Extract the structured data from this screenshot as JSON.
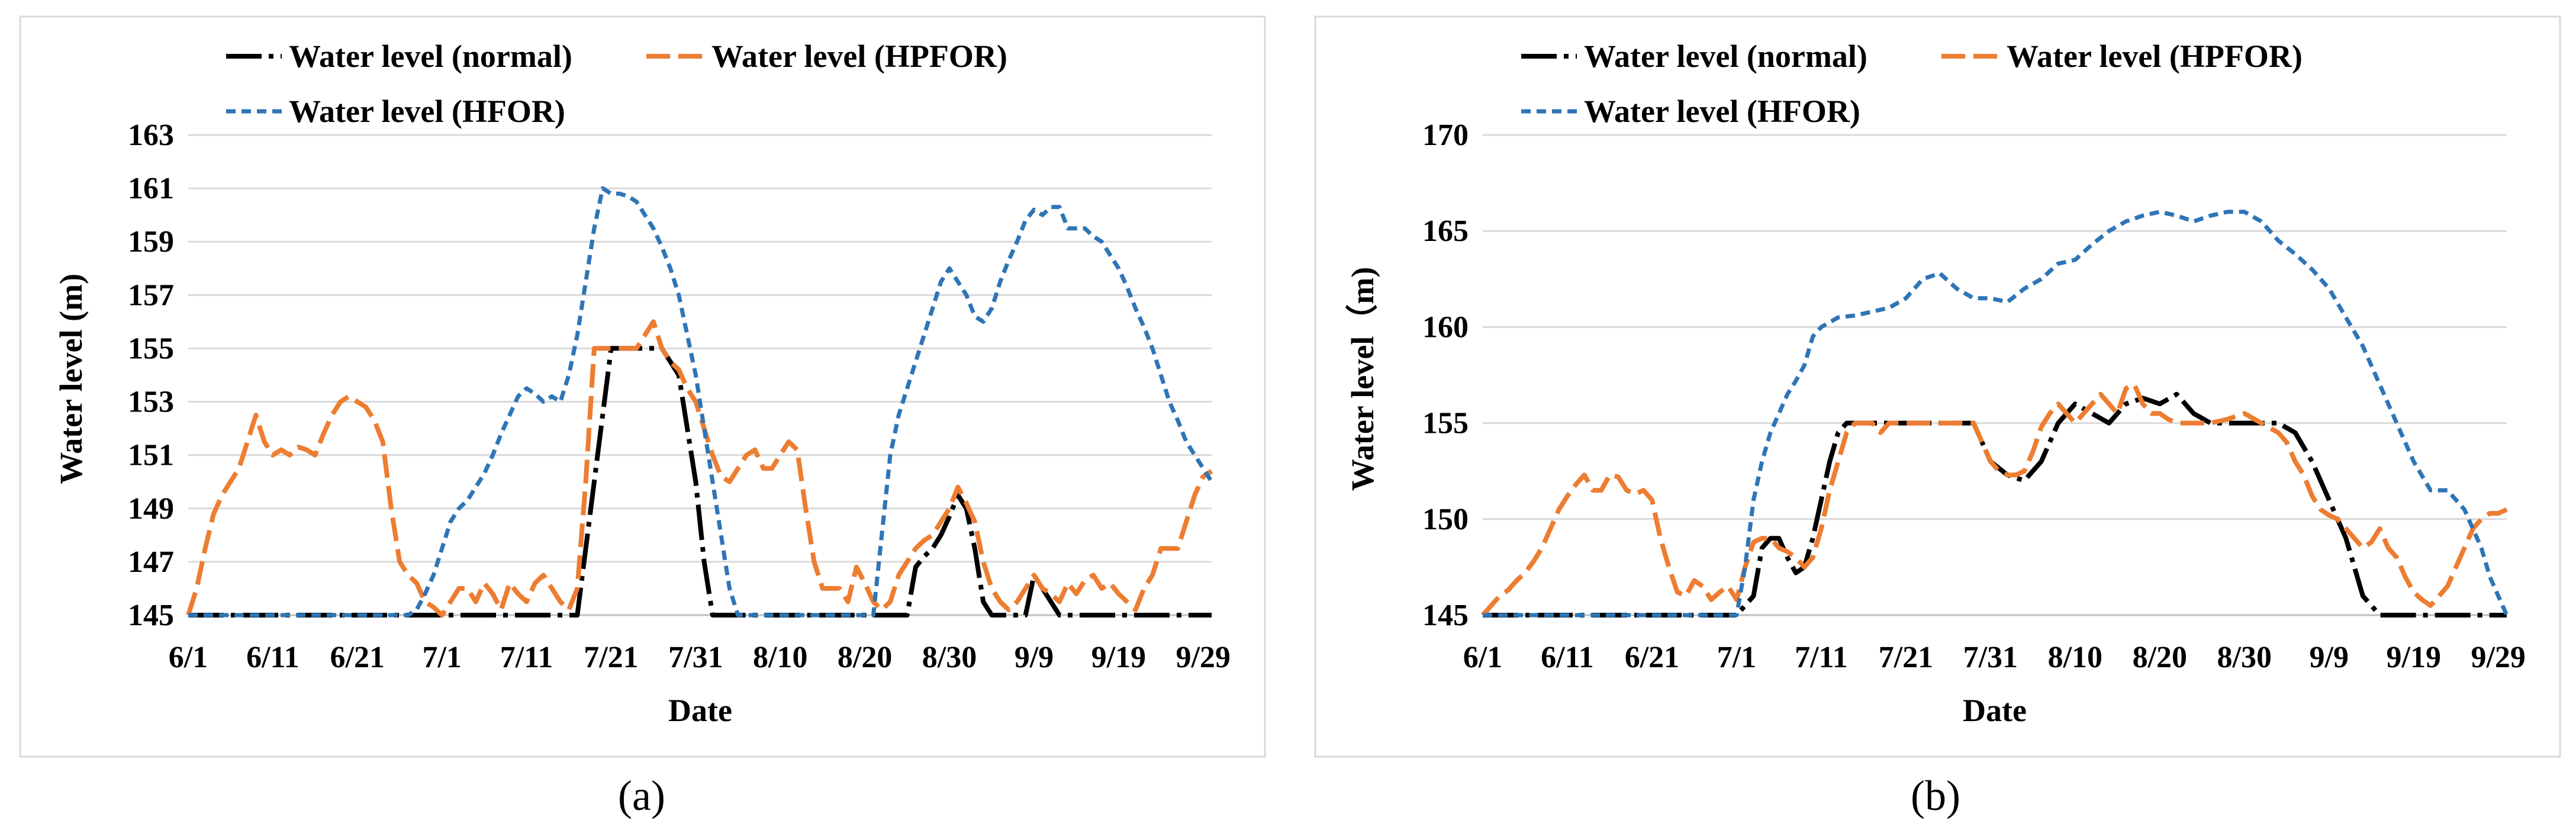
{
  "chart_data": [
    {
      "type": "line",
      "panel_label": "(a)",
      "xlabel": "Date",
      "ylabel": "Water level (m)",
      "ylim": [
        145,
        163
      ],
      "yticks": [
        145,
        147,
        149,
        151,
        153,
        155,
        157,
        159,
        161,
        163
      ],
      "xlim": [
        0,
        121
      ],
      "xtick_labels": [
        "6/1",
        "6/11",
        "6/21",
        "7/1",
        "7/11",
        "7/21",
        "7/31",
        "8/10",
        "8/20",
        "8/30",
        "9/9",
        "9/19",
        "9/29"
      ],
      "xtick_positions": [
        0,
        10,
        20,
        30,
        40,
        50,
        60,
        70,
        80,
        90,
        100,
        110,
        120
      ],
      "grid": true,
      "legend": [
        {
          "label": "Water level (normal)",
          "series": 0
        },
        {
          "label": "Water level (HPFOR)",
          "series": 1
        },
        {
          "label": "Water level (HFOR)",
          "series": 2
        }
      ],
      "series": [
        {
          "name": "Water level (normal)",
          "color": "#000000",
          "style": "dashdot",
          "x": [
            0,
            40,
            46,
            48,
            50,
            52,
            53,
            56,
            58,
            60,
            61,
            62,
            65,
            85,
            86,
            87,
            88,
            89,
            90,
            91,
            92,
            93,
            94,
            95,
            97,
            99,
            100,
            101,
            102,
            103,
            105,
            121
          ],
          "y": [
            145,
            145,
            145,
            150,
            155,
            155,
            155,
            155,
            154,
            150,
            147,
            145,
            145,
            145,
            146.8,
            147.2,
            147.5,
            148.0,
            148.7,
            149.5,
            149.0,
            147.5,
            145.5,
            145,
            145,
            145,
            146.5,
            146.0,
            145.5,
            145,
            145,
            145
          ]
        },
        {
          "name": "Water level (HPFOR)",
          "color": "#ED7D31",
          "style": "dash",
          "x": [
            0,
            1,
            2,
            3,
            4,
            5,
            6,
            7,
            8,
            9,
            10,
            11,
            12,
            13,
            14,
            15,
            16,
            17,
            18,
            19,
            20,
            21,
            22,
            23,
            24,
            25,
            26,
            27,
            28,
            29,
            30,
            31,
            32,
            33,
            34,
            35,
            36,
            37,
            38,
            39,
            40,
            41,
            42,
            43,
            44,
            45,
            46,
            47,
            48,
            49,
            50,
            51,
            52,
            53,
            54,
            55,
            56,
            57,
            58,
            59,
            60,
            61,
            62,
            63,
            64,
            65,
            66,
            67,
            68,
            69,
            70,
            71,
            72,
            73,
            74,
            75,
            76,
            77,
            78,
            79,
            80,
            81,
            82,
            83,
            84,
            85,
            86,
            87,
            88,
            89,
            90,
            91,
            92,
            93,
            94,
            95,
            96,
            97,
            98,
            99,
            100,
            101,
            102,
            103,
            104,
            105,
            106,
            107,
            108,
            109,
            110,
            111,
            112,
            113,
            114,
            115,
            116,
            117,
            118,
            119,
            120,
            121
          ],
          "y": [
            145,
            146,
            147.5,
            148.8,
            149.5,
            150,
            150.5,
            151.5,
            152.5,
            151.5,
            151,
            151.2,
            151,
            151.3,
            151.2,
            151,
            151.8,
            152.5,
            153,
            153.2,
            153,
            152.8,
            152.3,
            151.5,
            149,
            147,
            146.5,
            146.2,
            145.5,
            145.3,
            145,
            145.5,
            146,
            146,
            145.5,
            146.2,
            145.8,
            145.2,
            146.2,
            145.8,
            145.5,
            146.2,
            146.5,
            146,
            145.5,
            145.2,
            146,
            150,
            155,
            155,
            155,
            155,
            155,
            155,
            155.5,
            156,
            155,
            154.5,
            154.2,
            153.5,
            153,
            152,
            151,
            150.2,
            150,
            150.5,
            151,
            151.2,
            150.5,
            150.5,
            151,
            151.5,
            151.2,
            149,
            147,
            146,
            146,
            146,
            145.5,
            146.8,
            146.2,
            145.5,
            145.2,
            145.5,
            146.5,
            147,
            147.5,
            147.8,
            148,
            148.5,
            149,
            149.8,
            149.2,
            148.5,
            147,
            146,
            145.5,
            145.2,
            145.5,
            146,
            146.5,
            146,
            145.8,
            145.5,
            146.2,
            145.8,
            146.3,
            146.5,
            146,
            146.2,
            145.8,
            145.5,
            145.2,
            146,
            146.5,
            147.5,
            147.5,
            147.5,
            148.5,
            149.5,
            150.2,
            150.4
          ]
        },
        {
          "name": "Water level (HFOR)",
          "color": "#2E75B6",
          "style": "shortdash",
          "x": [
            0,
            26,
            27,
            28,
            29,
            30,
            31,
            32,
            33,
            34,
            35,
            36,
            37,
            38,
            39,
            40,
            41,
            42,
            43,
            44,
            45,
            46,
            47,
            48,
            49,
            50,
            51,
            52,
            53,
            54,
            55,
            56,
            57,
            58,
            59,
            60,
            61,
            62,
            63,
            64,
            65,
            66,
            67,
            68,
            69,
            70,
            71,
            72,
            73,
            74,
            75,
            76,
            77,
            78,
            79,
            80,
            81,
            82,
            83,
            84,
            85,
            86,
            87,
            88,
            89,
            90,
            91,
            92,
            93,
            94,
            95,
            96,
            97,
            98,
            99,
            100,
            101,
            102,
            103,
            104,
            105,
            106,
            107,
            108,
            109,
            110,
            111,
            112,
            113,
            114,
            115,
            116,
            117,
            118,
            119,
            120,
            121
          ],
          "y": [
            145,
            145,
            145.2,
            145.8,
            146.5,
            147.5,
            148.5,
            149,
            149.3,
            149.8,
            150.3,
            151,
            151.8,
            152.5,
            153.2,
            153.5,
            153.3,
            153,
            153.2,
            153,
            154,
            155.5,
            157.5,
            159.5,
            161,
            160.8,
            160.8,
            160.7,
            160.5,
            160,
            159.5,
            158.8,
            158,
            157,
            155.5,
            154,
            152,
            150,
            148,
            146,
            145,
            145,
            145,
            145,
            145,
            145,
            145,
            145,
            145,
            145,
            145,
            145,
            145,
            145,
            145,
            145,
            145,
            148,
            151,
            152.5,
            153.5,
            154.5,
            155.5,
            156.5,
            157.5,
            158,
            157.5,
            157,
            156.2,
            156,
            156.5,
            157.5,
            158.3,
            159,
            159.8,
            160.2,
            160,
            160.3,
            160.3,
            159.5,
            159.5,
            159.5,
            159.2,
            159,
            158.5,
            158,
            157.3,
            156.5,
            155.8,
            155,
            154,
            153,
            152.3,
            151.5,
            151,
            150.5,
            150
          ]
        }
      ]
    },
    {
      "type": "line",
      "panel_label": "(b)",
      "xlabel": "Date",
      "ylabel": "Water level（m)",
      "ylim": [
        145,
        170
      ],
      "yticks": [
        145,
        150,
        155,
        160,
        165,
        170
      ],
      "xlim": [
        0,
        121
      ],
      "xtick_labels": [
        "6/1",
        "6/11",
        "6/21",
        "7/1",
        "7/11",
        "7/21",
        "7/31",
        "8/10",
        "8/20",
        "8/30",
        "9/9",
        "9/19",
        "9/29"
      ],
      "xtick_positions": [
        0,
        10,
        20,
        30,
        40,
        50,
        60,
        70,
        80,
        90,
        100,
        110,
        120
      ],
      "grid": true,
      "legend": [
        {
          "label": "Water level (normal)",
          "series": 0
        },
        {
          "label": "Water level (HPFOR)",
          "series": 1
        },
        {
          "label": "Water level (HFOR)",
          "series": 2
        }
      ],
      "series": [
        {
          "name": "Water level (normal)",
          "color": "#000000",
          "style": "dashdot",
          "x": [
            0,
            30,
            31,
            32,
            33,
            34,
            35,
            36,
            37,
            38,
            39,
            40,
            41,
            42,
            43,
            44,
            45,
            46,
            47,
            48,
            55,
            58,
            60,
            62,
            64,
            66,
            68,
            70,
            72,
            74,
            76,
            78,
            80,
            82,
            84,
            86,
            88,
            90,
            92,
            94,
            96,
            98,
            100,
            102,
            103,
            104,
            106,
            108,
            121
          ],
          "y": [
            145,
            145,
            145.5,
            146,
            148.5,
            149,
            149,
            148,
            147.2,
            147.5,
            149,
            151,
            153,
            154.5,
            155,
            155,
            155,
            155,
            155,
            155,
            155,
            155,
            153,
            152.3,
            152,
            153,
            155,
            156,
            155.5,
            155,
            156,
            156.3,
            156,
            156.5,
            155.5,
            155,
            155,
            155,
            155,
            155,
            154.5,
            153,
            151,
            149,
            147.5,
            146,
            145,
            145,
            145
          ]
        },
        {
          "name": "Water level (HPFOR)",
          "color": "#ED7D31",
          "style": "dash",
          "x": [
            0,
            1,
            2,
            3,
            4,
            5,
            6,
            7,
            8,
            9,
            10,
            11,
            12,
            13,
            14,
            15,
            16,
            17,
            18,
            19,
            20,
            21,
            22,
            23,
            24,
            25,
            26,
            27,
            28,
            29,
            30,
            31,
            32,
            33,
            34,
            35,
            36,
            37,
            38,
            39,
            40,
            41,
            42,
            43,
            44,
            45,
            46,
            47,
            48,
            49,
            50,
            52,
            55,
            57,
            58,
            59,
            60,
            61,
            62,
            63,
            64,
            65,
            66,
            67,
            68,
            69,
            70,
            71,
            72,
            73,
            74,
            75,
            76,
            77,
            78,
            79,
            80,
            81,
            82,
            83,
            84,
            85,
            86,
            88,
            90,
            92,
            94,
            95,
            96,
            97,
            98,
            99,
            100,
            101,
            102,
            103,
            104,
            105,
            106,
            107,
            108,
            109,
            110,
            111,
            112,
            113,
            114,
            115,
            116,
            117,
            118,
            119,
            120,
            121
          ],
          "y": [
            145,
            145.5,
            146,
            146.3,
            146.8,
            147.2,
            147.8,
            148.5,
            149.5,
            150.5,
            151.2,
            151.8,
            152.3,
            151.5,
            151.5,
            152.3,
            152.2,
            151.5,
            151.3,
            151.5,
            151,
            149,
            147.5,
            146.2,
            146,
            146.8,
            146.5,
            145.8,
            146.2,
            146.5,
            145.8,
            147.5,
            148.8,
            149,
            149,
            148.5,
            148.3,
            148,
            147.5,
            148,
            149.5,
            151.5,
            153,
            154.5,
            155,
            155,
            155,
            154.5,
            155,
            155,
            155,
            155,
            155,
            155,
            155,
            154,
            153,
            152.5,
            152.3,
            152.3,
            152.5,
            153.5,
            154.8,
            155.5,
            156,
            155.5,
            155,
            155.5,
            156,
            156.5,
            156,
            155.5,
            156.8,
            157,
            156,
            155.5,
            155.5,
            155.2,
            155,
            155,
            155,
            155,
            155,
            155.2,
            155.5,
            155,
            154.5,
            154,
            153,
            152.3,
            151.2,
            150.5,
            150.2,
            150,
            149.5,
            149,
            148.5,
            148.8,
            149.5,
            148.5,
            148,
            147,
            146.2,
            145.8,
            145.5,
            146,
            146.5,
            147.5,
            148.5,
            149.5,
            150,
            150.3,
            150.3,
            150.5
          ]
        },
        {
          "name": "Water level (HFOR)",
          "color": "#2E75B6",
          "style": "shortdash",
          "x": [
            0,
            30,
            31,
            32,
            33,
            34,
            35,
            36,
            37,
            38,
            39,
            40,
            42,
            44,
            46,
            48,
            50,
            52,
            54,
            56,
            58,
            60,
            62,
            64,
            66,
            68,
            70,
            72,
            74,
            76,
            78,
            80,
            82,
            84,
            86,
            88,
            90,
            92,
            94,
            96,
            98,
            100,
            102,
            104,
            106,
            108,
            110,
            112,
            114,
            116,
            118,
            119,
            120,
            121
          ],
          "y": [
            145,
            145,
            147.5,
            151,
            153,
            154.5,
            155.5,
            156.5,
            157.2,
            158,
            159.5,
            160,
            160.5,
            160.6,
            160.8,
            161,
            161.5,
            162.5,
            162.8,
            162,
            161.5,
            161.5,
            161.3,
            162,
            162.5,
            163.3,
            163.5,
            164.3,
            165,
            165.5,
            165.8,
            166,
            165.8,
            165.5,
            165.8,
            166,
            166,
            165.5,
            164.5,
            163.8,
            163,
            162,
            160.5,
            159,
            157,
            155,
            153,
            151.5,
            151.5,
            150.5,
            148.5,
            147,
            146,
            145
          ]
        }
      ]
    }
  ]
}
